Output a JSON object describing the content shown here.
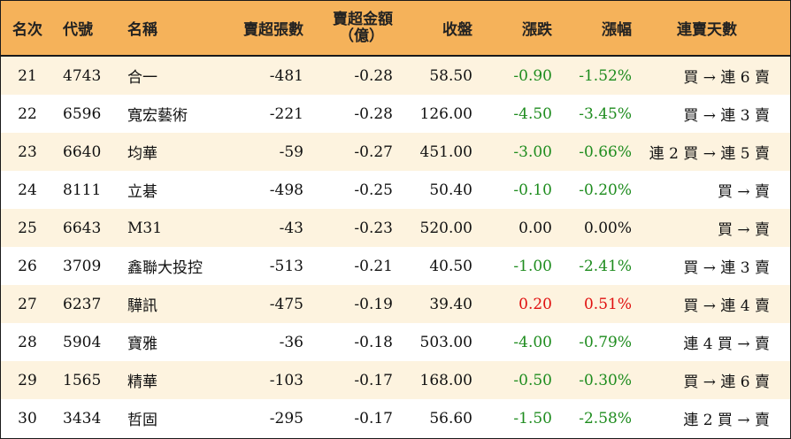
{
  "headers": {
    "rank": "名次",
    "code": "代號",
    "name": "名稱",
    "net_sell_lots": "賣超張數",
    "net_sell_amount_line1": "賣超金額",
    "net_sell_amount_line2": "（億）",
    "close": "收盤",
    "change": "漲跌",
    "change_pct": "漲幅",
    "streak": "連賣天數"
  },
  "rows": [
    {
      "rank": "21",
      "code": "4743",
      "name": "合一",
      "lots": "-481",
      "amount": "-0.28",
      "close": "58.50",
      "change": "-0.90",
      "pct": "-1.52%",
      "streak": "買 → 連 6 賣"
    },
    {
      "rank": "22",
      "code": "6596",
      "name": "寬宏藝術",
      "lots": "-221",
      "amount": "-0.28",
      "close": "126.00",
      "change": "-4.50",
      "pct": "-3.45%",
      "streak": "買 → 連 3 賣"
    },
    {
      "rank": "23",
      "code": "6640",
      "name": "均華",
      "lots": "-59",
      "amount": "-0.27",
      "close": "451.00",
      "change": "-3.00",
      "pct": "-0.66%",
      "streak": "連 2 買 → 連 5 賣"
    },
    {
      "rank": "24",
      "code": "8111",
      "name": "立碁",
      "lots": "-498",
      "amount": "-0.25",
      "close": "50.40",
      "change": "-0.10",
      "pct": "-0.20%",
      "streak": "買 → 賣"
    },
    {
      "rank": "25",
      "code": "6643",
      "name": "M31",
      "lots": "-43",
      "amount": "-0.23",
      "close": "520.00",
      "change": "0.00",
      "pct": "0.00%",
      "streak": "買 → 賣"
    },
    {
      "rank": "26",
      "code": "3709",
      "name": "鑫聯大投控",
      "lots": "-513",
      "amount": "-0.21",
      "close": "40.50",
      "change": "-1.00",
      "pct": "-2.41%",
      "streak": "買 → 連 3 賣"
    },
    {
      "rank": "27",
      "code": "6237",
      "name": "驊訊",
      "lots": "-475",
      "amount": "-0.19",
      "close": "39.40",
      "change": "0.20",
      "pct": "0.51%",
      "streak": "買 → 連 4 賣"
    },
    {
      "rank": "28",
      "code": "5904",
      "name": "寶雅",
      "lots": "-36",
      "amount": "-0.18",
      "close": "503.00",
      "change": "-4.00",
      "pct": "-0.79%",
      "streak": "連 4 買 → 賣"
    },
    {
      "rank": "29",
      "code": "1565",
      "name": "精華",
      "lots": "-103",
      "amount": "-0.17",
      "close": "168.00",
      "change": "-0.50",
      "pct": "-0.30%",
      "streak": "買 → 連 6 賣"
    },
    {
      "rank": "30",
      "code": "3434",
      "name": "哲固",
      "lots": "-295",
      "amount": "-0.17",
      "close": "56.60",
      "change": "-1.50",
      "pct": "-2.58%",
      "streak": "連 2 買 → 賣"
    }
  ],
  "colors": {
    "header_bg": "#f5b25a",
    "stripe_bg": "#fdf3df",
    "negative": "#1e8c1e",
    "positive": "#e01010",
    "neutral": "#111111"
  }
}
